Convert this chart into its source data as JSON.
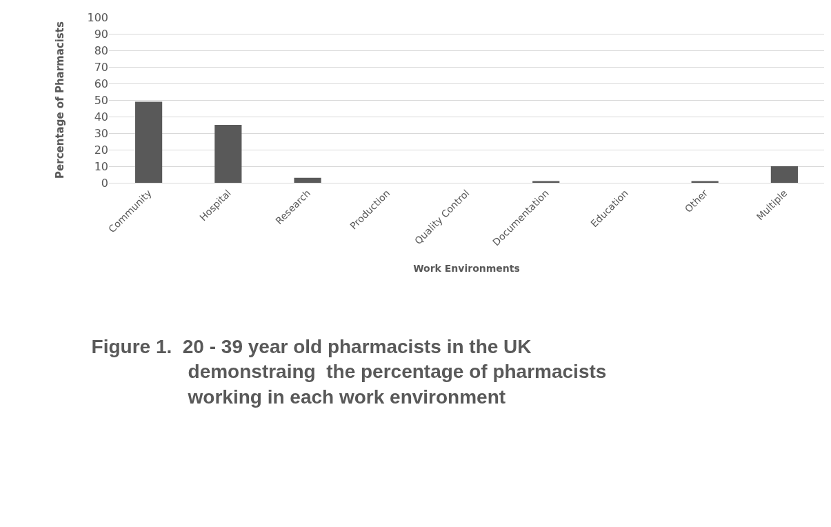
{
  "chart_data": {
    "type": "bar",
    "title": "Figure 1.  20 - 39 year old pharmacists in the UK\ndemonstraing  the percentage of pharmacists\nworking in each work environment",
    "xlabel": "Work Environments",
    "ylabel": "Percentage of Pharmacists",
    "categories": [
      "Community",
      "Hospital",
      "Research",
      "Production",
      "Quality Control",
      "Documentation",
      "Education",
      "Other",
      "Multiple"
    ],
    "values": [
      49,
      35,
      3,
      0,
      0,
      1,
      0,
      1,
      10
    ],
    "color": "#595959",
    "ylim": [
      0,
      100
    ],
    "yticks": [
      0,
      10,
      20,
      30,
      40,
      50,
      60,
      70,
      80,
      90,
      100
    ],
    "grid": "y",
    "legend": false
  }
}
